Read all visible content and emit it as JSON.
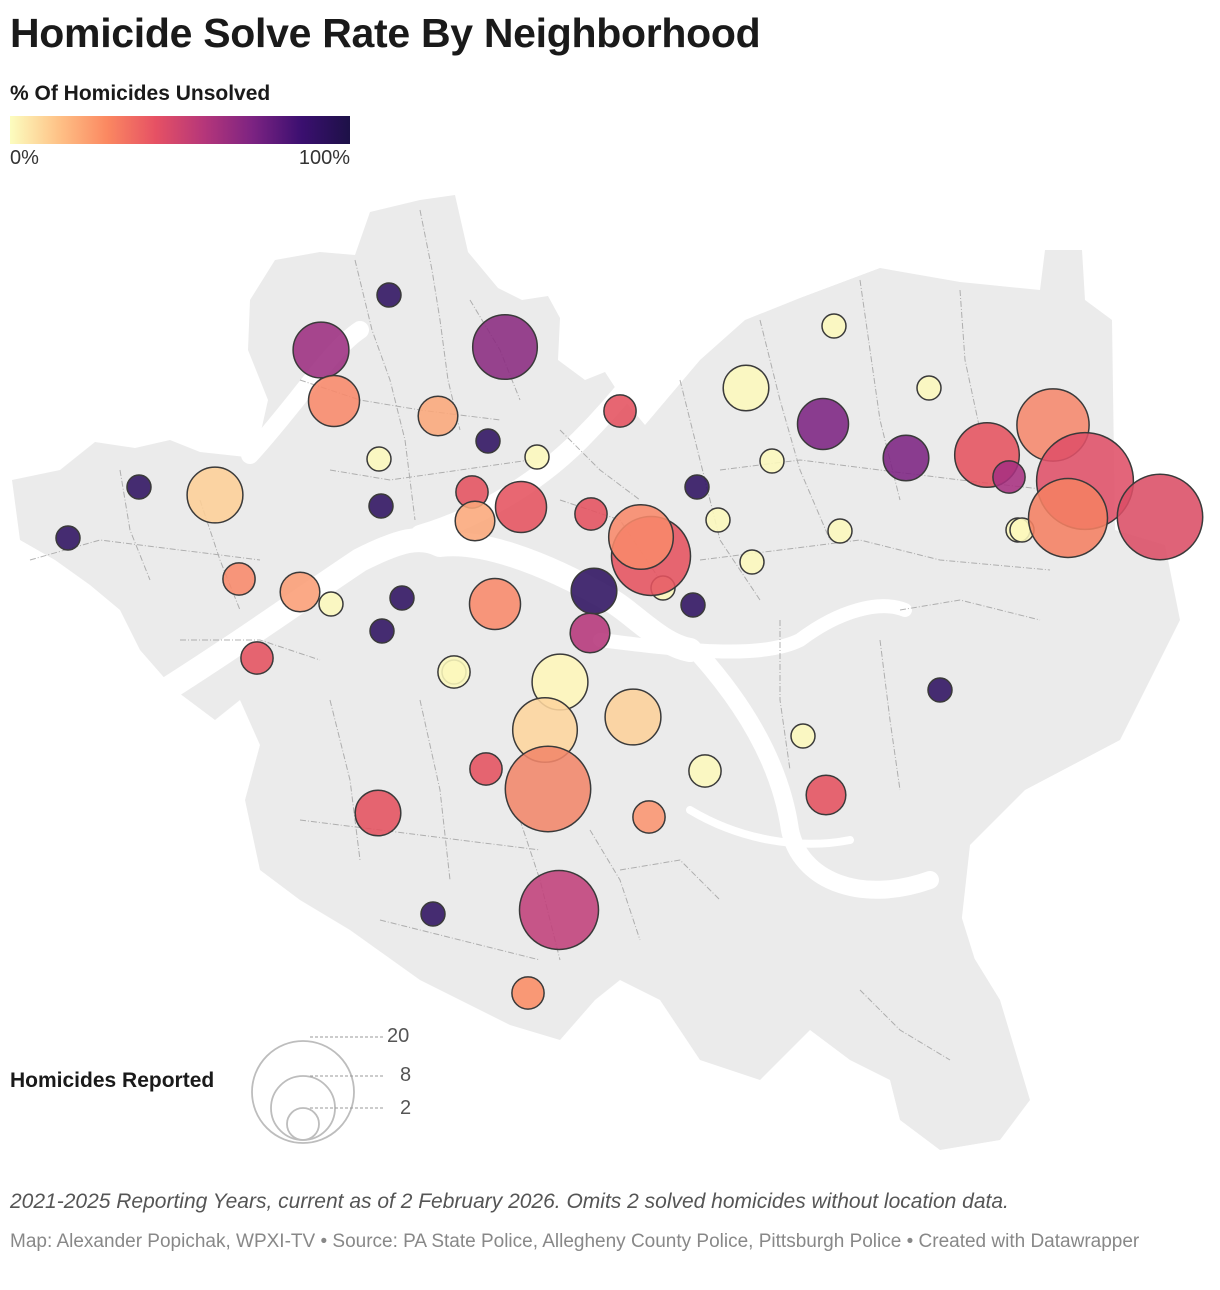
{
  "title": "Homicide Solve Rate By Neighborhood",
  "color_legend": {
    "title": "% Of Homicides Unsolved",
    "min_label": "0%",
    "max_label": "100%",
    "stops": [
      "#fcfdbf",
      "#fec287",
      "#fb8861",
      "#e65164",
      "#b5367a",
      "#7c2382",
      "#3b0f70",
      "#1d1147"
    ]
  },
  "size_legend": {
    "title": "Homicides Reported",
    "labels": [
      "20",
      "8",
      "2"
    ]
  },
  "note": "2021-2025 Reporting Years, current as of 2 February 2026. Omits 2 solved homicides without location data.",
  "credit": "Map: Alexander Popichak, WPXI-TV • Source: PA State Police, Allegheny County Police, Pittsburgh Police • Created with Datawrapper",
  "colors": {
    "land": "#ebebeb",
    "river": "#ffffff",
    "boundary": "#9a9a9a",
    "bubble_stroke": "#3a3a3a"
  },
  "chart_data": {
    "type": "proportional-symbol-map",
    "size_variable": "Homicides Reported",
    "color_variable": "% Of Homicides Unsolved",
    "color_range": [
      0,
      100
    ],
    "points": [
      {
        "count": 1,
        "unsolved_pct": 100,
        "color": "#2d1160"
      },
      {
        "count": 6,
        "unsolved_pct": 70,
        "color": "#9c2e7f"
      },
      {
        "count": 8,
        "unsolved_pct": 70,
        "color": "#8a2a80"
      },
      {
        "count": 5,
        "unsolved_pct": 40,
        "color": "#f8896a"
      },
      {
        "count": 3,
        "unsolved_pct": 30,
        "color": "#fba77a"
      },
      {
        "count": 2,
        "unsolved_pct": 60,
        "color": "#e4515f"
      },
      {
        "count": 1,
        "unsolved_pct": 100,
        "color": "#2d1160"
      },
      {
        "count": 1,
        "unsolved_pct": 0,
        "color": "#fcf8bc"
      },
      {
        "count": 1,
        "unsolved_pct": 0,
        "color": "#fcf8bc"
      },
      {
        "count": 1,
        "unsolved_pct": 100,
        "color": "#2d1160"
      },
      {
        "count": 2,
        "unsolved_pct": 60,
        "color": "#e4515f"
      },
      {
        "count": 5,
        "unsolved_pct": 55,
        "color": "#e5525f"
      },
      {
        "count": 3,
        "unsolved_pct": 30,
        "color": "#fba77a"
      },
      {
        "count": 1,
        "unsolved_pct": 100,
        "color": "#2d1160"
      },
      {
        "count": 1,
        "unsolved_pct": 0,
        "color": "#fcf8bc"
      },
      {
        "count": 6,
        "unsolved_pct": 17,
        "color": "#fdcf97"
      },
      {
        "count": 1,
        "unsolved_pct": 100,
        "color": "#2d1160"
      },
      {
        "count": 2,
        "unsolved_pct": 40,
        "color": "#f8896a"
      },
      {
        "count": 3,
        "unsolved_pct": 33,
        "color": "#fb9d75"
      },
      {
        "count": 1,
        "unsolved_pct": 0,
        "color": "#fcf8bc"
      },
      {
        "count": 1,
        "unsolved_pct": 100,
        "color": "#2d1160"
      },
      {
        "count": 1,
        "unsolved_pct": 100,
        "color": "#2d1160"
      },
      {
        "count": 2,
        "unsolved_pct": 60,
        "color": "#e4515f"
      },
      {
        "count": 5,
        "unsolved_pct": 40,
        "color": "#f8896a"
      },
      {
        "count": 2,
        "unsolved_pct": 60,
        "color": "#e4515f"
      },
      {
        "count": 1,
        "unsolved_pct": 0,
        "color": "#fcf8bc"
      },
      {
        "count": 12,
        "unsolved_pct": 55,
        "color": "#e5525f"
      },
      {
        "count": 8,
        "unsolved_pct": 45,
        "color": "#f8896a"
      },
      {
        "count": 1,
        "unsolved_pct": 0,
        "color": "#fcf8bc"
      },
      {
        "count": 4,
        "unsolved_pct": 100,
        "color": "#2d1160"
      },
      {
        "count": 3,
        "unsolved_pct": 67,
        "color": "#b5367a"
      },
      {
        "count": 1,
        "unsolved_pct": 100,
        "color": "#2d1160"
      },
      {
        "count": 1,
        "unsolved_pct": 100,
        "color": "#2d1160"
      },
      {
        "count": 1,
        "unsolved_pct": 0,
        "color": "#fcf8bc"
      },
      {
        "count": 1,
        "unsolved_pct": 0,
        "color": "#fcf8bc"
      },
      {
        "count": 4,
        "unsolved_pct": 0,
        "color": "#fcf8bc"
      },
      {
        "count": 1,
        "unsolved_pct": 0,
        "color": "#fcf8bc"
      },
      {
        "count": 1,
        "unsolved_pct": 0,
        "color": "#fcf8bc"
      },
      {
        "count": 1,
        "unsolved_pct": 0,
        "color": "#fcf8bc"
      },
      {
        "count": 5,
        "unsolved_pct": 75,
        "color": "#7c2382"
      },
      {
        "count": 1,
        "unsolved_pct": 0,
        "color": "#fcf8bc"
      },
      {
        "count": 4,
        "unsolved_pct": 75,
        "color": "#7c2382"
      },
      {
        "count": 1,
        "unsolved_pct": 0,
        "color": "#fcf8bc"
      },
      {
        "count": 8,
        "unsolved_pct": 55,
        "color": "#e5525f"
      },
      {
        "count": 10,
        "unsolved_pct": 40,
        "color": "#f5886c"
      },
      {
        "count": 2,
        "unsolved_pct": 70,
        "color": "#a7307f"
      },
      {
        "count": 18,
        "unsolved_pct": 55,
        "color": "#df5068"
      },
      {
        "count": 12,
        "unsolved_pct": 45,
        "color": "#f47f62"
      },
      {
        "count": 1,
        "unsolved_pct": 0,
        "color": "#fcf8bc"
      },
      {
        "count": 14,
        "unsolved_pct": 55,
        "color": "#db4d65"
      },
      {
        "count": 6,
        "unsolved_pct": 10,
        "color": "#fef6b9"
      },
      {
        "count": 8,
        "unsolved_pct": 20,
        "color": "#fdd59d"
      },
      {
        "count": 6,
        "unsolved_pct": 22,
        "color": "#fcd09a"
      },
      {
        "count": 14,
        "unsolved_pct": 45,
        "color": "#f1866a"
      },
      {
        "count": 2,
        "unsolved_pct": 55,
        "color": "#e4515f"
      },
      {
        "count": 2,
        "unsolved_pct": 0,
        "color": "#fcf8bc"
      },
      {
        "count": 2,
        "unsolved_pct": 40,
        "color": "#fa9470"
      },
      {
        "count": 2,
        "unsolved_pct": 0,
        "color": "#fcf8bc"
      },
      {
        "count": 1,
        "unsolved_pct": 100,
        "color": "#2d1160"
      },
      {
        "count": 3,
        "unsolved_pct": 55,
        "color": "#e4515f"
      },
      {
        "count": 4,
        "unsolved_pct": 60,
        "color": "#e4515f"
      },
      {
        "count": 1,
        "unsolved_pct": 100,
        "color": "#2d1160"
      },
      {
        "count": 12,
        "unsolved_pct": 65,
        "color": "#c0407a"
      },
      {
        "count": 2,
        "unsolved_pct": 40,
        "color": "#fa8c64"
      }
    ]
  }
}
